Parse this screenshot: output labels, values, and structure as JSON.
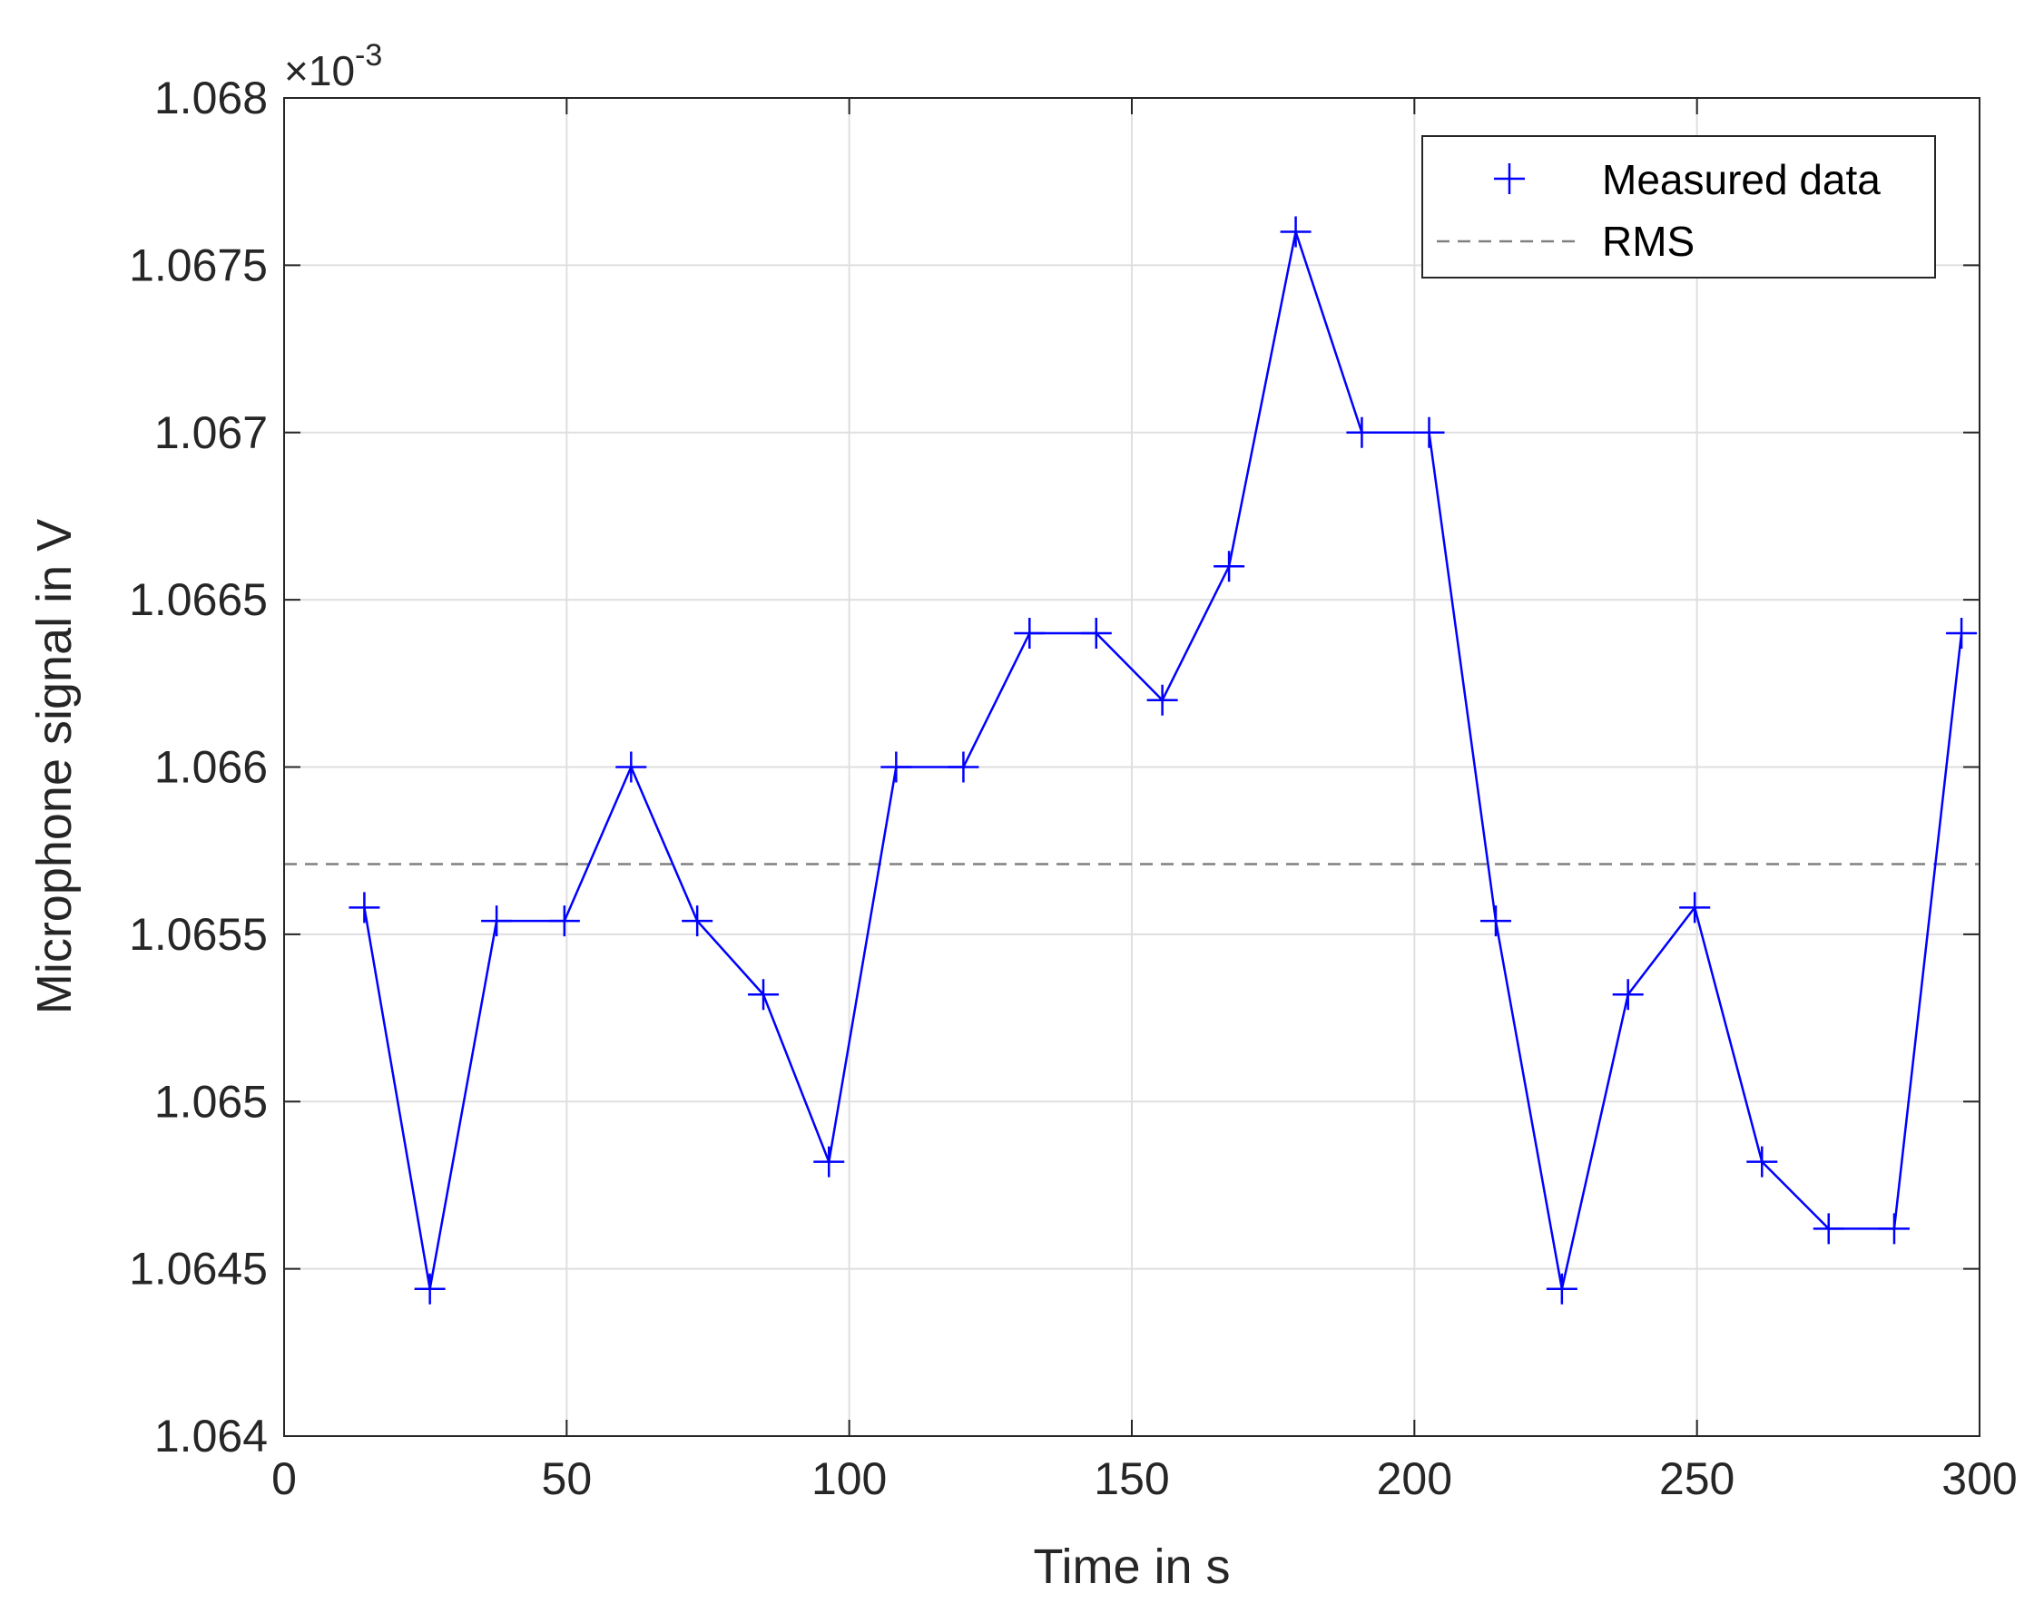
{
  "chart_data": {
    "type": "line",
    "title": "",
    "xlabel": "Time in s",
    "ylabel": "Microphone signal in V",
    "xlim": [
      0,
      300
    ],
    "ylim": [
      1.064,
      1.068
    ],
    "y_scale_multiplier": "×10",
    "y_scale_exponent": "-3",
    "x_ticks": [
      0,
      50,
      100,
      150,
      200,
      250,
      300
    ],
    "x_tick_labels": [
      "0",
      "50",
      "100",
      "150",
      "200",
      "250",
      "300"
    ],
    "y_ticks": [
      1.064,
      1.0645,
      1.065,
      1.0655,
      1.066,
      1.0665,
      1.067,
      1.0675,
      1.068
    ],
    "y_tick_labels": [
      "1.064",
      "1.0645",
      "1.065",
      "1.0655",
      "1.066",
      "1.0665",
      "1.067",
      "1.0675",
      "1.068"
    ],
    "grid": true,
    "legend_position": "top-right",
    "series": [
      {
        "name": "Measured data",
        "color": "#0000ff",
        "marker": "plus",
        "x": [
          14.2,
          25.8,
          37.6,
          49.6,
          61.4,
          73.1,
          84.8,
          96.4,
          108.3,
          120.2,
          131.9,
          143.7,
          155.4,
          167.2,
          179.0,
          190.7,
          202.6,
          214.4,
          226.1,
          237.8,
          249.6,
          261.5,
          273.3,
          284.9,
          296.8
        ],
        "y": [
          1.06558,
          1.06444,
          1.06554,
          1.06554,
          1.066,
          1.06554,
          1.06532,
          1.06482,
          1.066,
          1.066,
          1.0664,
          1.0664,
          1.0662,
          1.0666,
          1.0676,
          1.067,
          1.067,
          1.06554,
          1.06444,
          1.06532,
          1.06558,
          1.06482,
          1.06462,
          1.06462,
          1.0664
        ]
      },
      {
        "name": "RMS",
        "color": "#808080",
        "style": "dashed",
        "value": 1.06571
      }
    ]
  }
}
